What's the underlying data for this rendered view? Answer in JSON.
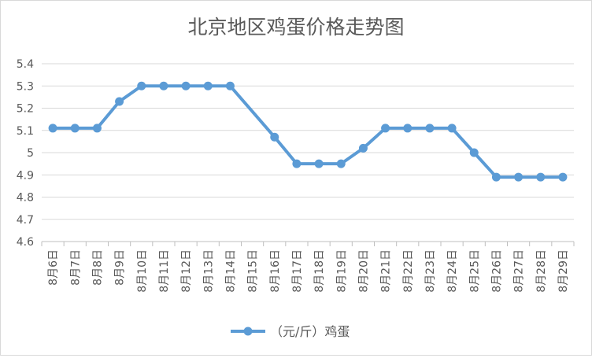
{
  "chart_data": {
    "type": "line",
    "title": "北京地区鸡蛋价格走势图",
    "xlabel": "",
    "ylabel": "",
    "categories": [
      "8月6日",
      "8月7日",
      "8月8日",
      "8月9日",
      "8月10日",
      "8月11日",
      "8月12日",
      "8月13日",
      "8月14日",
      "8月15日",
      "8月16日",
      "8月17日",
      "8月18日",
      "8月19日",
      "8月20日",
      "8月21日",
      "8月22日",
      "8月23日",
      "8月24日",
      "8月25日",
      "8月26日",
      "8月27日",
      "8月28日",
      "8月29日"
    ],
    "series": [
      {
        "name": "（元/斤）鸡蛋",
        "values": [
          5.11,
          5.11,
          5.11,
          5.23,
          5.3,
          5.3,
          5.3,
          5.3,
          5.3,
          null,
          5.07,
          4.95,
          4.95,
          4.95,
          5.02,
          5.11,
          5.11,
          5.11,
          5.11,
          5.0,
          4.89,
          4.89,
          4.89,
          4.89
        ],
        "color": "#5B9BD5"
      }
    ],
    "ylim": [
      4.6,
      5.4
    ],
    "yticks": [
      "4.6",
      "4.7",
      "4.8",
      "4.9",
      "5",
      "5.1",
      "5.2",
      "5.3",
      "5.4"
    ],
    "grid": true,
    "legend": "bottom"
  }
}
